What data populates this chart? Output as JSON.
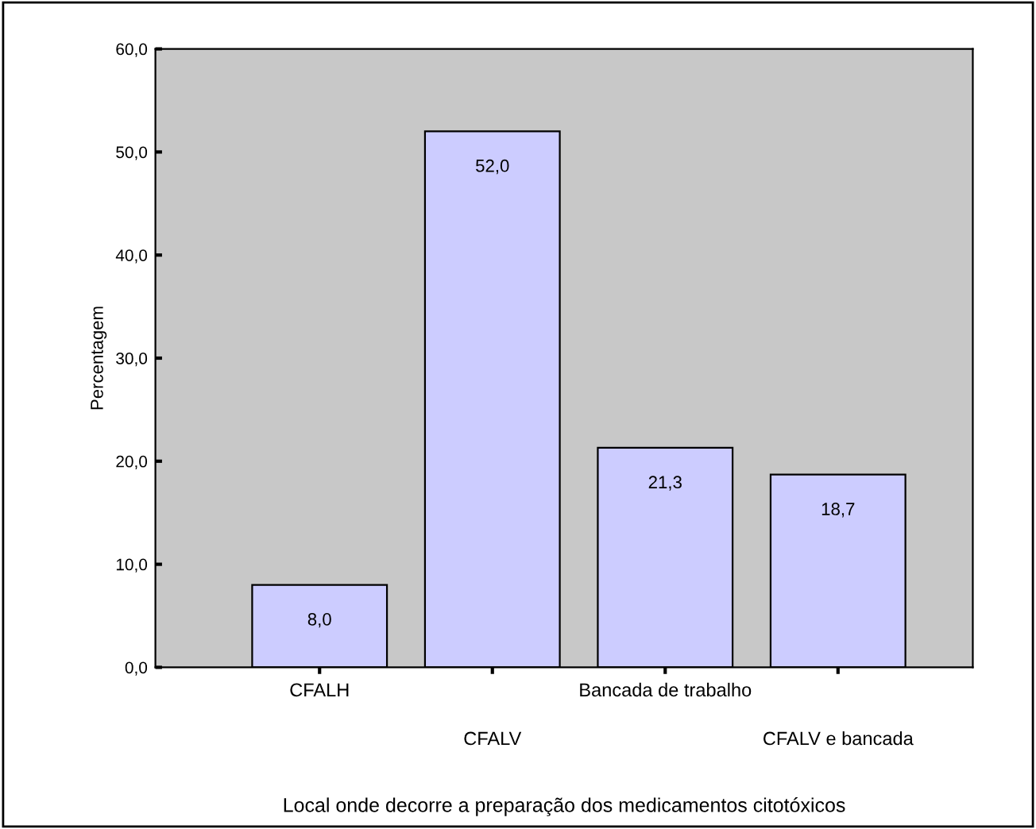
{
  "chart_data": {
    "type": "bar",
    "xlabel": "Local onde decorre a preparação dos medicamentos citotóxicos",
    "ylabel": "Percentagem",
    "categories": [
      "CFALH",
      "CFALV",
      "Bancada de trabalho",
      "CFALV e bancada"
    ],
    "values": [
      8.0,
      52.0,
      21.3,
      18.7
    ],
    "color": "#ccccff",
    "value_labels": [
      "8,0",
      "52,0",
      "21,3",
      "18,7"
    ],
    "ylim": [
      0,
      60
    ],
    "yticks": [
      {
        "value": 0,
        "label": "0,0"
      },
      {
        "value": 10,
        "label": "10,0"
      },
      {
        "value": 20,
        "label": "20,0"
      },
      {
        "value": 30,
        "label": "30,0"
      },
      {
        "value": 40,
        "label": "40,0"
      },
      {
        "value": 50,
        "label": "50,0"
      },
      {
        "value": 60,
        "label": "60,0"
      }
    ],
    "grid": false,
    "legend": false
  }
}
